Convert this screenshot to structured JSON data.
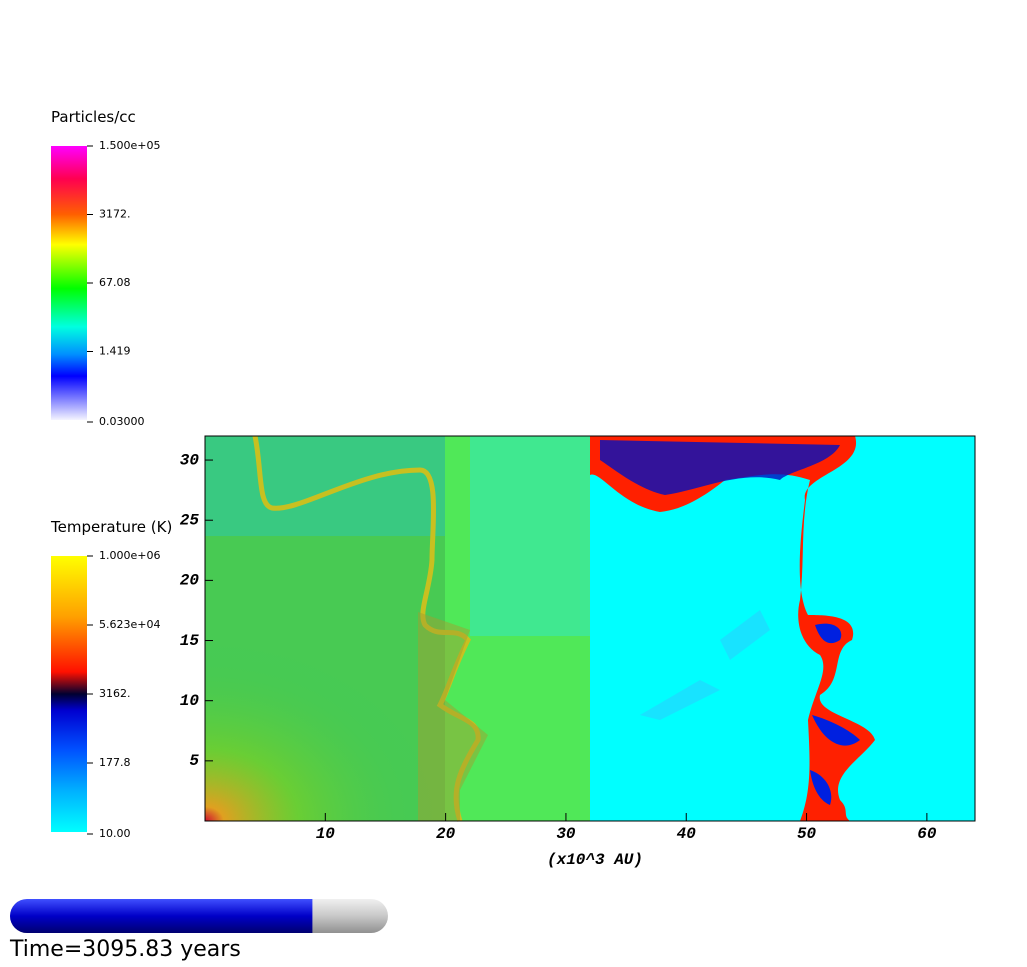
{
  "colorbars": [
    {
      "title": "Particles/cc",
      "labels": [
        "1.500e+05",
        "3172.",
        "67.08",
        "1.419",
        "0.03000"
      ]
    },
    {
      "title": "Temperature (K)",
      "labels": [
        "1.000e+06",
        "5.623e+04",
        "3162.",
        "177.8",
        "10.00"
      ]
    }
  ],
  "plot": {
    "xlim": [
      0,
      64
    ],
    "ylim": [
      0,
      32
    ],
    "xticks": [
      10,
      20,
      30,
      40,
      50,
      60
    ],
    "yticks": [
      5,
      10,
      15,
      20,
      25,
      30
    ],
    "xlabel": "(x10^3 AU)"
  },
  "time_label": "Time=3095.83 years",
  "time_progress": 0.8
}
